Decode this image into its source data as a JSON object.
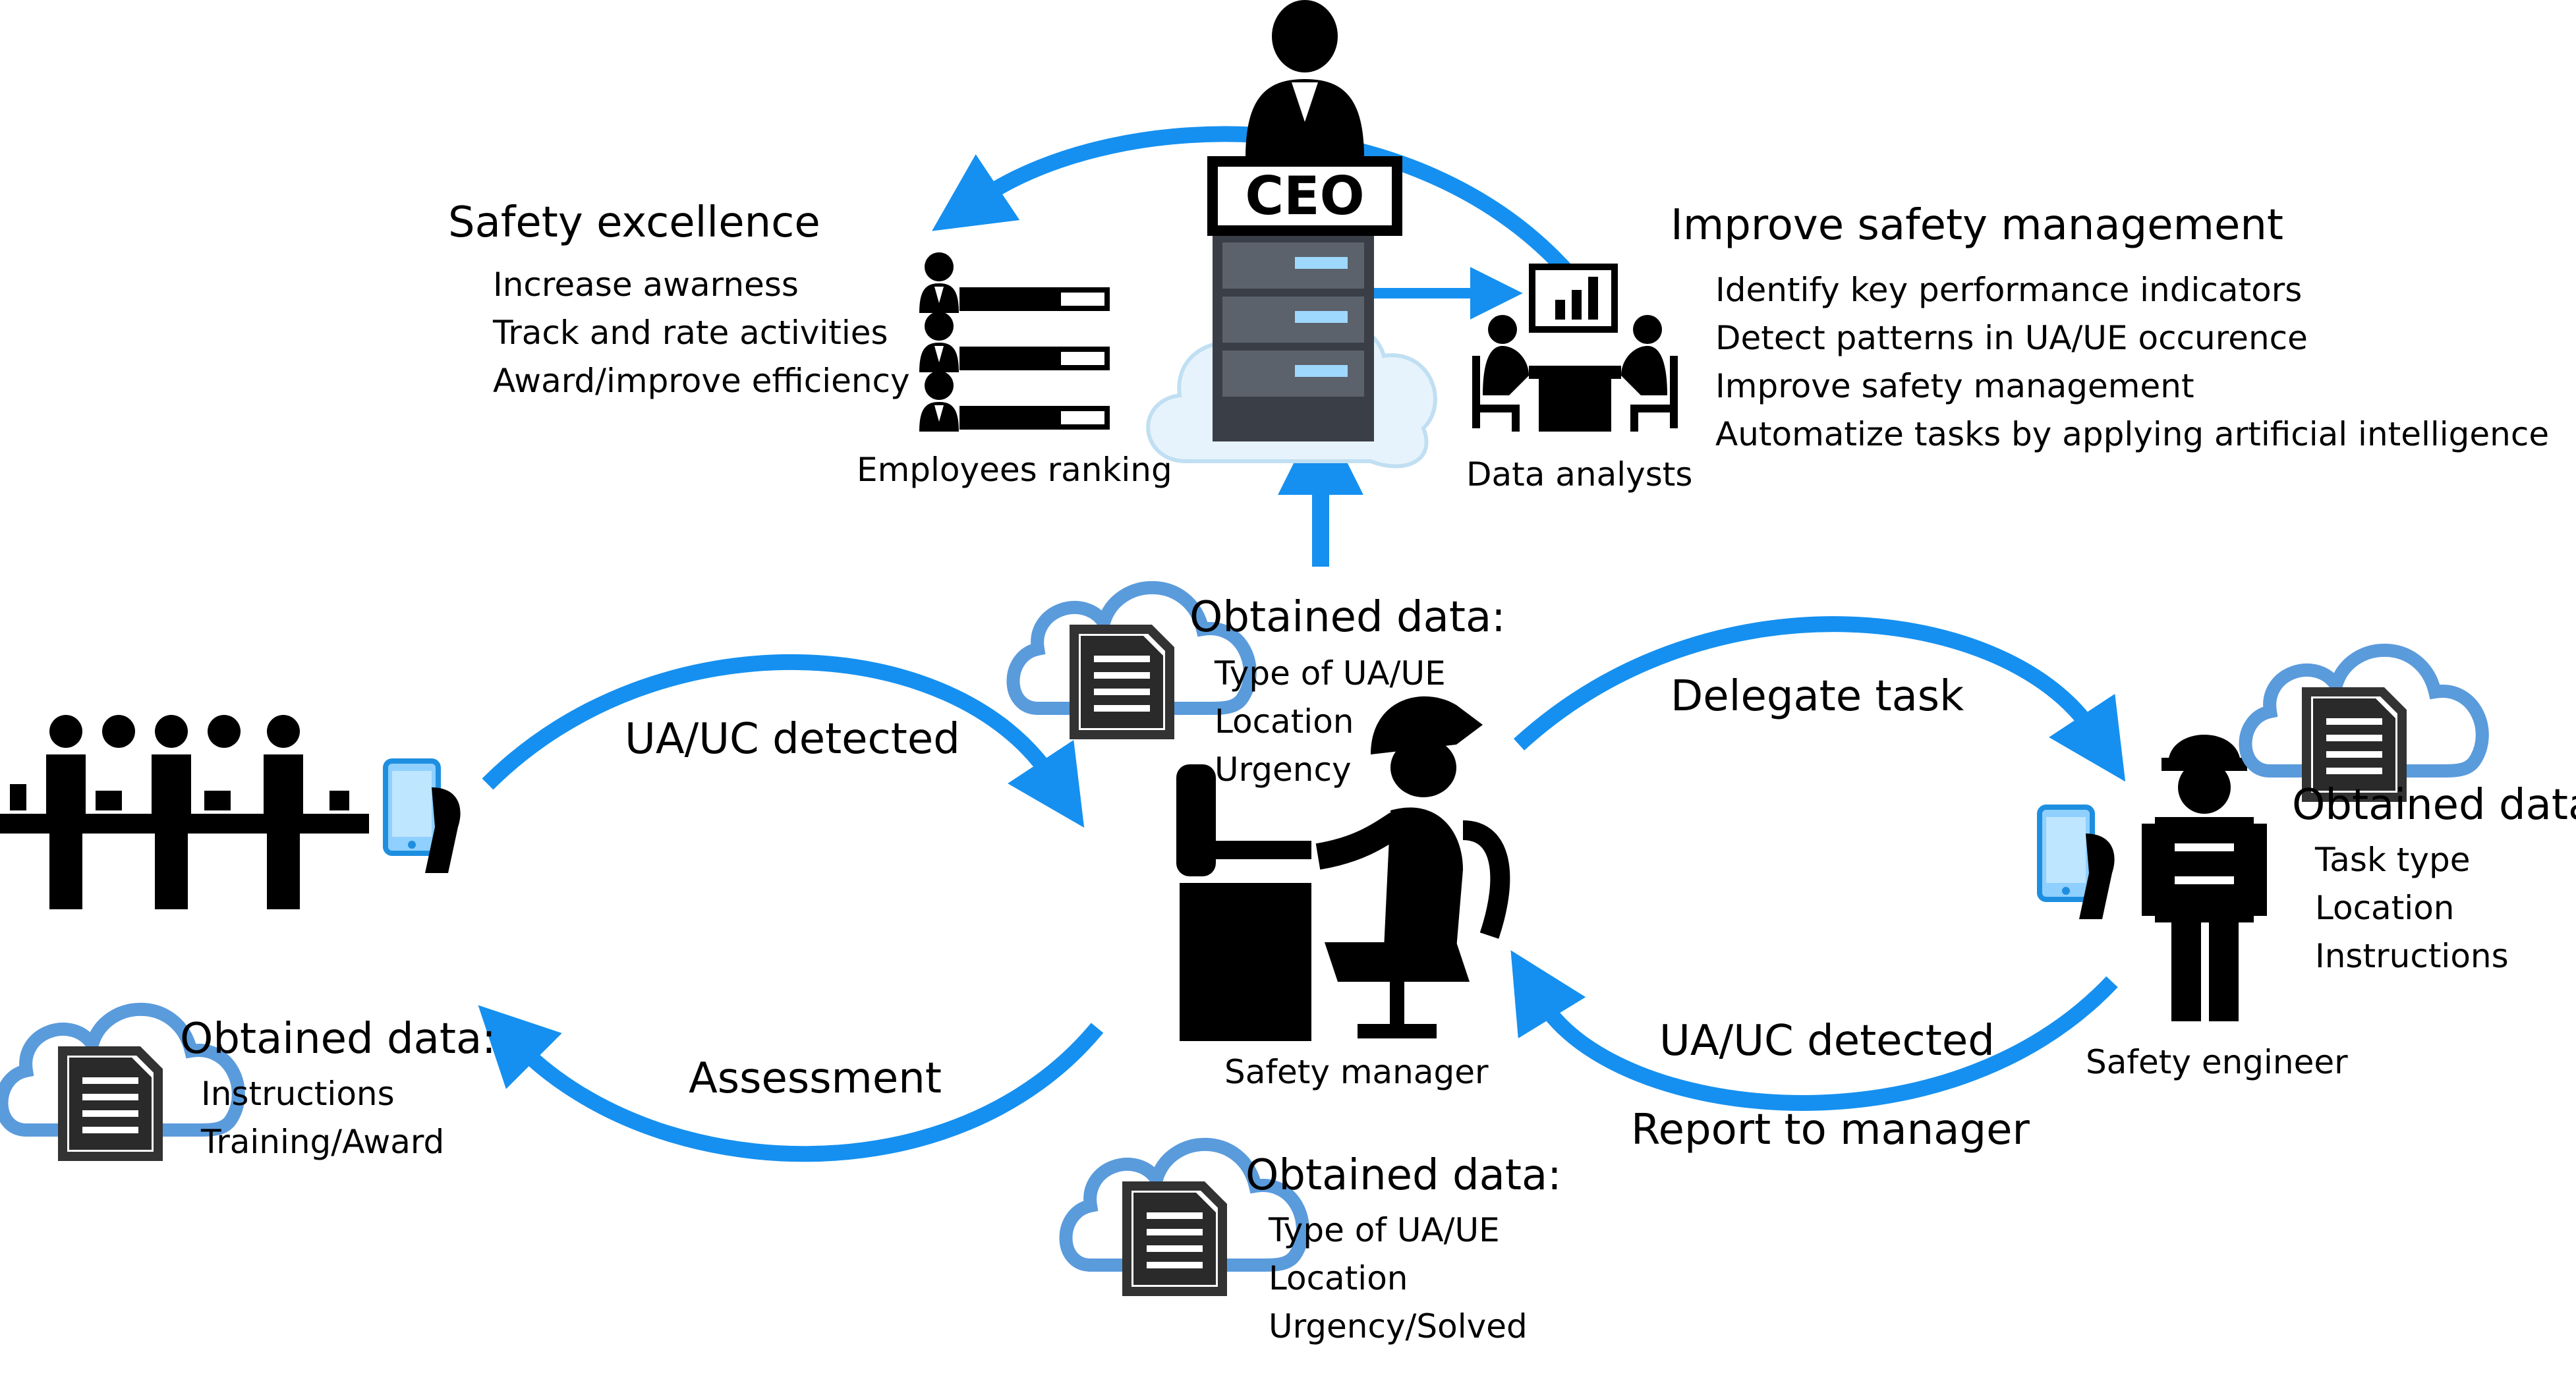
{
  "colors": {
    "arrow": "#1590f0",
    "cloud_outline": "#5a9bdc",
    "ink": "#000000",
    "server_light": "#9fd8ff"
  },
  "icons": [
    "ceo-icon",
    "server-cloud-icon",
    "employees-ranking-icon",
    "data-analysts-icon",
    "workers-icon",
    "phone-icon",
    "safety-manager-icon",
    "safety-engineer-icon",
    "cloud-document-icon"
  ],
  "ceo": {
    "sign": "CEO"
  },
  "safety_excellence": {
    "title": "Safety excellence",
    "items": [
      "Increase awarness",
      "Track and rate activities",
      "Award/improve efficiency"
    ]
  },
  "improve_safety": {
    "title": "Improve safety management",
    "items": [
      "Identify key performance indicators",
      "Detect patterns in UA/UE occurence",
      "Improve safety management",
      "Automatize tasks by applying artificial intelligence"
    ]
  },
  "labels": {
    "employees_ranking": "Employees ranking",
    "data_analysts": "Data analysts",
    "safety_manager": "Safety manager",
    "safety_engineer": "Safety engineer"
  },
  "flows": {
    "workers_to_manager": "UA/UC detected",
    "manager_to_workers": "Assessment",
    "manager_to_engineer": "Delegate task",
    "engineer_to_manager_1": "UA/UC detected",
    "engineer_to_manager_2": "Report to manager"
  },
  "data_boxes": {
    "manager_top": {
      "title": "Obtained data:",
      "items": [
        "Type of UA/UE",
        "Location",
        "Urgency"
      ]
    },
    "engineer": {
      "title": "Obtained data:",
      "items": [
        "Task type",
        "Location",
        "Instructions"
      ]
    },
    "workers": {
      "title": "Obtained data:",
      "items": [
        "Instructions",
        "Training/Award"
      ]
    },
    "manager_bottom": {
      "title": "Obtained data:",
      "items": [
        "Type of UA/UE",
        "Location",
        "Urgency/Solved"
      ]
    }
  }
}
